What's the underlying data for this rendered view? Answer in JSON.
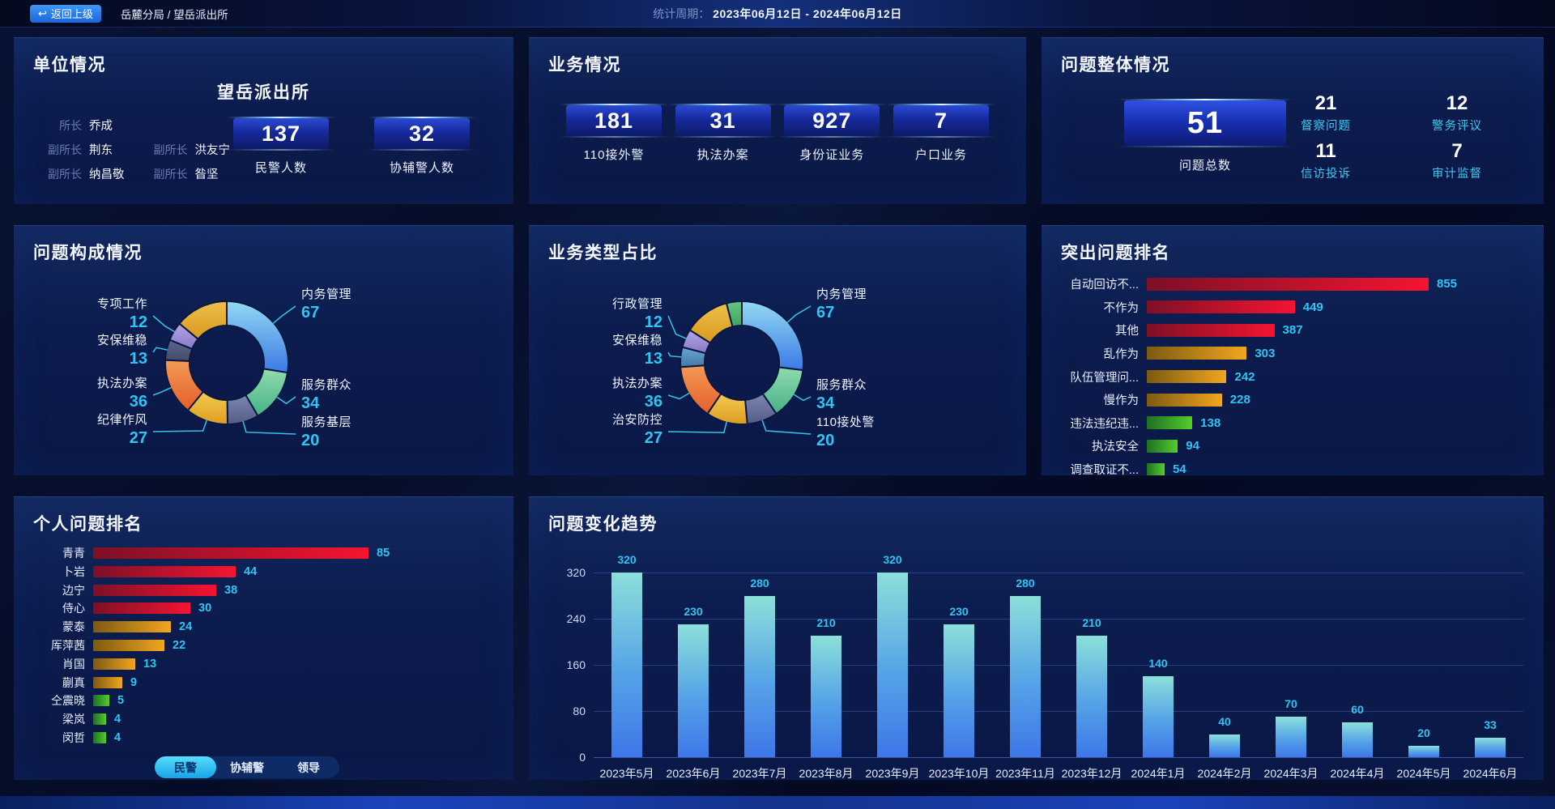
{
  "topbar": {
    "back_button": "返回上级",
    "breadcrumb": "岳麓分局 / 望岳派出所",
    "period_label": "统计周期：",
    "period_value": "2023年06月12日 - 2024年06月12日"
  },
  "panels": {
    "unit": {
      "title": "单位情况",
      "station_name": "望岳派出所",
      "leaders": [
        {
          "role": "所长",
          "name": "乔成"
        },
        {
          "role": "副所长",
          "name": "荆东"
        },
        {
          "role": "副所长",
          "name": "洪友宁"
        },
        {
          "role": "副所长",
          "name": "纳昌敬"
        },
        {
          "role": "副所长",
          "name": "昝坚"
        }
      ],
      "stats": [
        {
          "value": "137",
          "label": "民警人数"
        },
        {
          "value": "32",
          "label": "协辅警人数"
        }
      ]
    },
    "business": {
      "title": "业务情况",
      "stats": [
        {
          "value": "181",
          "label": "110接外警"
        },
        {
          "value": "31",
          "label": "执法办案"
        },
        {
          "value": "927",
          "label": "身份证业务"
        },
        {
          "value": "7",
          "label": "户口业务"
        }
      ]
    },
    "problem_overview": {
      "title": "问题整体情况",
      "total": {
        "value": "51",
        "label": "问题总数"
      },
      "stats": [
        {
          "value": "21",
          "label": "督察问题"
        },
        {
          "value": "12",
          "label": "警务评议"
        },
        {
          "value": "11",
          "label": "信访投诉"
        },
        {
          "value": "7",
          "label": "审计监督"
        }
      ]
    }
  },
  "chart_data": [
    {
      "id": "problem_composition",
      "type": "pie",
      "title": "问题构成情况",
      "donut": true,
      "slices": [
        {
          "label": "内务管理",
          "value": 67,
          "colors": [
            "#93d9f2",
            "#3b7ae6"
          ]
        },
        {
          "label": "服务群众",
          "value": 34,
          "colors": [
            "#8fdcae",
            "#45b186"
          ]
        },
        {
          "label": "服务基层",
          "value": 20,
          "colors": [
            "#7d86b2",
            "#545c86"
          ]
        },
        {
          "label": "纪律作风",
          "value": 27,
          "colors": [
            "#f2cb52",
            "#dc9d20"
          ]
        },
        {
          "label": "执法办案",
          "value": 36,
          "colors": [
            "#f29a56",
            "#e65e2b"
          ]
        },
        {
          "label": "安保维稳",
          "value": 13,
          "colors": [
            "#5d6689",
            "#434b6c"
          ]
        },
        {
          "label": "专项工作",
          "value": 12,
          "colors": [
            "#b4a6e4",
            "#8878c8"
          ]
        },
        {
          "label": "",
          "value": 34,
          "colors": [
            "#eec04a",
            "#d79a1c"
          ]
        }
      ]
    },
    {
      "id": "business_type_share",
      "type": "pie",
      "title": "业务类型占比",
      "donut": true,
      "slices": [
        {
          "label": "内务管理",
          "value": 67,
          "colors": [
            "#93d9f2",
            "#3b7ae6"
          ]
        },
        {
          "label": "服务群众",
          "value": 34,
          "colors": [
            "#8fdcae",
            "#45b186"
          ]
        },
        {
          "label": "110接处警",
          "value": 20,
          "colors": [
            "#7d86b2",
            "#545c86"
          ]
        },
        {
          "label": "治安防控",
          "value": 27,
          "colors": [
            "#f2cb52",
            "#dc9d20"
          ]
        },
        {
          "label": "执法办案",
          "value": 36,
          "colors": [
            "#f29a56",
            "#e65e2b"
          ]
        },
        {
          "label": "安保维稳",
          "value": 13,
          "colors": [
            "#6ca6d2",
            "#4278a4"
          ]
        },
        {
          "label": "行政管理",
          "value": 12,
          "colors": [
            "#b4a6e4",
            "#8878c8"
          ]
        },
        {
          "label": "",
          "value": 30,
          "colors": [
            "#eec04a",
            "#d79a1c"
          ]
        },
        {
          "label": "",
          "value": 10,
          "colors": [
            "#67c584",
            "#3fa35e"
          ]
        }
      ]
    },
    {
      "id": "top_problems",
      "type": "bar",
      "orientation": "horizontal",
      "title": "突出问题排名",
      "items": [
        {
          "label": "自动回访不...",
          "value": 855,
          "palette": "red"
        },
        {
          "label": "不作为",
          "value": 449,
          "palette": "red"
        },
        {
          "label": "其他",
          "value": 387,
          "palette": "red"
        },
        {
          "label": "乱作为",
          "value": 303,
          "palette": "gold"
        },
        {
          "label": "队伍管理问...",
          "value": 242,
          "palette": "gold"
        },
        {
          "label": "慢作为",
          "value": 228,
          "palette": "gold"
        },
        {
          "label": "违法违纪违...",
          "value": 138,
          "palette": "green"
        },
        {
          "label": "执法安全",
          "value": 94,
          "palette": "green"
        },
        {
          "label": "调查取证不...",
          "value": 54,
          "palette": "green"
        }
      ]
    },
    {
      "id": "personal_ranking",
      "type": "bar",
      "orientation": "horizontal",
      "title": "个人问题排名",
      "items": [
        {
          "label": "青青",
          "value": 85,
          "palette": "red"
        },
        {
          "label": "卜岩",
          "value": 44,
          "palette": "red"
        },
        {
          "label": "边宁",
          "value": 38,
          "palette": "red"
        },
        {
          "label": "侍心",
          "value": 30,
          "palette": "red"
        },
        {
          "label": "蒙泰",
          "value": 24,
          "palette": "gold"
        },
        {
          "label": "厍萍茜",
          "value": 22,
          "palette": "gold"
        },
        {
          "label": "肖国",
          "value": 13,
          "palette": "gold"
        },
        {
          "label": "蒯真",
          "value": 9,
          "palette": "gold"
        },
        {
          "label": "仝震晓",
          "value": 5,
          "palette": "green"
        },
        {
          "label": "梁岚",
          "value": 4,
          "palette": "green"
        },
        {
          "label": "闵哲",
          "value": 4,
          "palette": "green"
        }
      ],
      "tabs": [
        {
          "label": "民警",
          "active": true
        },
        {
          "label": "协辅警",
          "active": false
        },
        {
          "label": "领导",
          "active": false
        }
      ]
    },
    {
      "id": "problem_trend",
      "type": "bar",
      "orientation": "vertical",
      "title": "问题变化趋势",
      "categories": [
        "2023年5月",
        "2023年6月",
        "2023年7月",
        "2023年8月",
        "2023年9月",
        "2023年10月",
        "2023年11月",
        "2023年12月",
        "2024年1月",
        "2024年2月",
        "2024年3月",
        "2024年4月",
        "2024年5月",
        "2024年6月"
      ],
      "values": [
        320,
        230,
        280,
        210,
        320,
        230,
        280,
        210,
        140,
        40,
        70,
        60,
        20,
        33
      ],
      "yticks": [
        0,
        80,
        160,
        240,
        320
      ],
      "ylim": [
        0,
        340
      ],
      "grid": true
    }
  ],
  "colors": {
    "accent_cyan": "#2fc4f2",
    "label_cyan": "#3fc8f0",
    "bar_palettes": {
      "red": [
        "#7d1026",
        "#f51431"
      ],
      "gold": [
        "#7c5a12",
        "#f2a61e"
      ],
      "green": [
        "#1d6f24",
        "#54cd2a"
      ]
    },
    "trend_bar": [
      "#8be0d9",
      "#3d77e8"
    ]
  }
}
